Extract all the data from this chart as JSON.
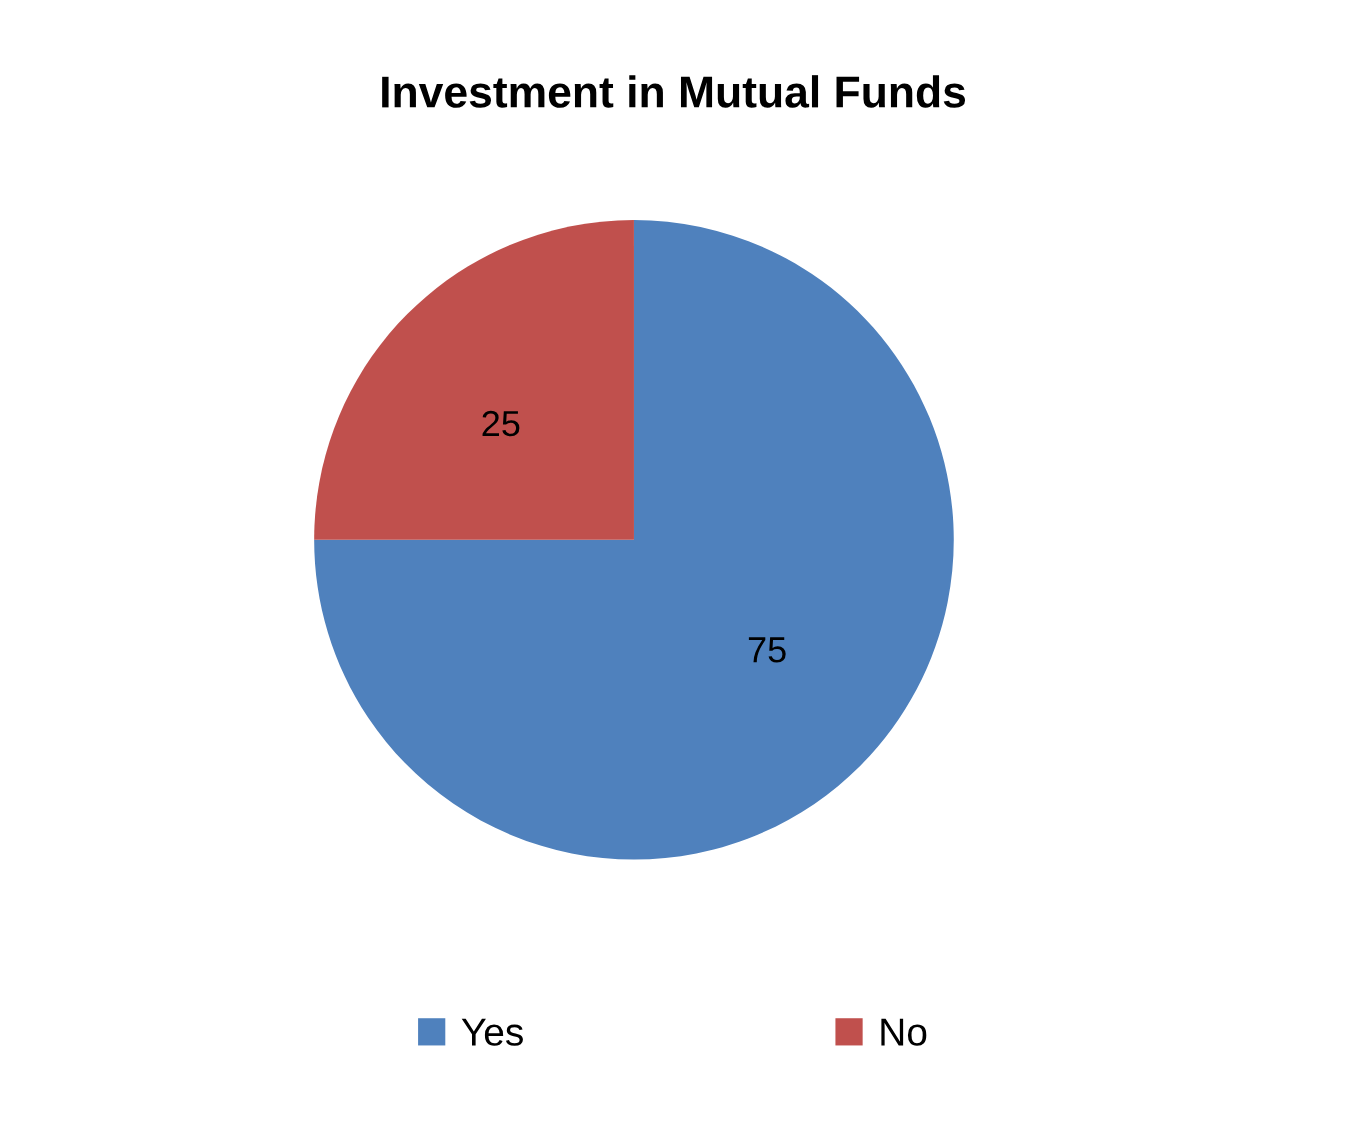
{
  "chart_data": {
    "type": "pie",
    "title": "Investment in Mutual Funds",
    "categories": [
      "Yes",
      "No"
    ],
    "values": [
      75,
      25
    ],
    "colors": [
      "#4f81bd",
      "#c0504d"
    ],
    "data_labels": true,
    "legend": "bottom"
  }
}
